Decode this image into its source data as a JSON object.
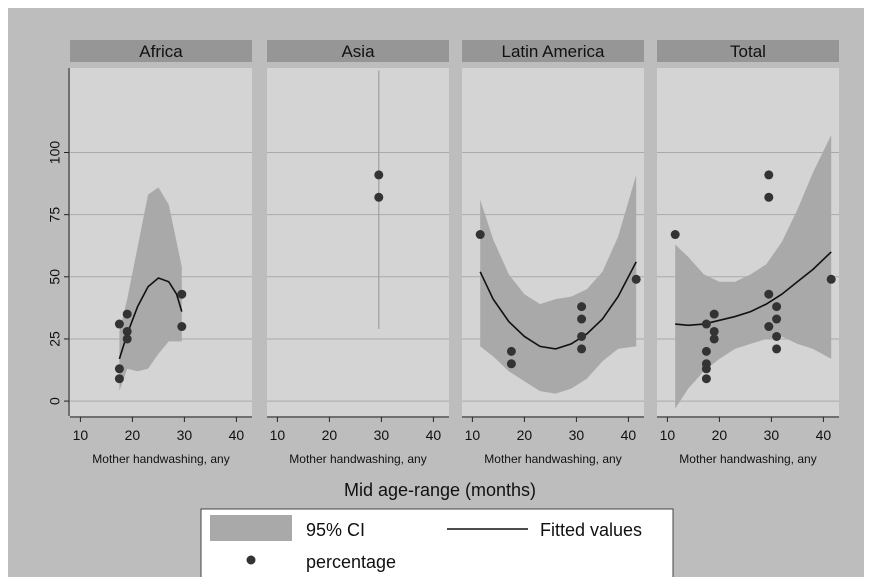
{
  "chart_data": {
    "type": "scatter",
    "xlabel": "Mid age-range (months)",
    "ylabel": "",
    "xlim": [
      8,
      43
    ],
    "ylim": [
      -6,
      134
    ],
    "xticks": [
      10,
      20,
      30,
      40
    ],
    "yticks": [
      0,
      25,
      50,
      75,
      100
    ],
    "grid": true,
    "legend_position": "bottom",
    "legend": {
      "ci_label": "95% CI",
      "fit_label": "Fitted values",
      "points_label": "percentage"
    },
    "panels": [
      {
        "title": "Africa",
        "subtitle": "Mother handwashing, any",
        "points": [
          [
            17.5,
            31
          ],
          [
            17.5,
            13
          ],
          [
            17.5,
            9
          ],
          [
            19,
            35
          ],
          [
            19,
            28
          ],
          [
            19,
            25
          ],
          [
            29.5,
            43
          ],
          [
            29.5,
            30
          ]
        ],
        "fit": [
          [
            17.5,
            17
          ],
          [
            19,
            27
          ],
          [
            21,
            38
          ],
          [
            23,
            46
          ],
          [
            25,
            49.5
          ],
          [
            27,
            48
          ],
          [
            28.5,
            43
          ],
          [
            29.5,
            36
          ]
        ],
        "ci_upper": [
          [
            17.5,
            28
          ],
          [
            19,
            41
          ],
          [
            21,
            62
          ],
          [
            23,
            83
          ],
          [
            25,
            86
          ],
          [
            27,
            79
          ],
          [
            29.5,
            54
          ]
        ],
        "ci_lower": [
          [
            17.5,
            4
          ],
          [
            19,
            13
          ],
          [
            21,
            12
          ],
          [
            23,
            13
          ],
          [
            25,
            19
          ],
          [
            27,
            24
          ],
          [
            29.5,
            24
          ]
        ]
      },
      {
        "title": "Asia",
        "subtitle": "Mother handwashing, any",
        "points": [
          [
            29.5,
            91
          ],
          [
            29.5,
            82
          ]
        ],
        "fit": [],
        "ci_upper": [],
        "ci_lower": [],
        "vertical_ci": {
          "x": 29.5,
          "low": 29,
          "high": 144
        }
      },
      {
        "title": "Latin America",
        "subtitle": "Mother handwashing, any",
        "points": [
          [
            11.5,
            67
          ],
          [
            17.5,
            20
          ],
          [
            17.5,
            15
          ],
          [
            31,
            38
          ],
          [
            31,
            33
          ],
          [
            31,
            26
          ],
          [
            31,
            21
          ],
          [
            41.5,
            49
          ]
        ],
        "fit": [
          [
            11.5,
            52
          ],
          [
            14,
            41
          ],
          [
            17,
            32
          ],
          [
            20,
            26
          ],
          [
            23,
            22
          ],
          [
            26,
            21
          ],
          [
            29,
            23
          ],
          [
            32,
            27
          ],
          [
            35,
            33
          ],
          [
            38,
            42
          ],
          [
            41.5,
            56
          ]
        ],
        "ci_upper": [
          [
            11.5,
            81
          ],
          [
            14,
            65
          ],
          [
            17,
            51
          ],
          [
            20,
            43
          ],
          [
            23,
            39
          ],
          [
            26,
            41
          ],
          [
            29,
            42
          ],
          [
            32,
            45
          ],
          [
            35,
            52
          ],
          [
            38,
            66
          ],
          [
            41.5,
            91
          ]
        ],
        "ci_lower": [
          [
            11.5,
            22
          ],
          [
            14,
            18
          ],
          [
            17,
            12
          ],
          [
            20,
            8
          ],
          [
            23,
            4
          ],
          [
            26,
            3
          ],
          [
            29,
            5
          ],
          [
            32,
            9
          ],
          [
            35,
            16
          ],
          [
            38,
            21
          ],
          [
            41.5,
            22
          ]
        ]
      },
      {
        "title": "Total",
        "subtitle": "Mother handwashing, any",
        "points": [
          [
            11.5,
            67
          ],
          [
            17.5,
            31
          ],
          [
            17.5,
            20
          ],
          [
            17.5,
            15
          ],
          [
            17.5,
            13
          ],
          [
            17.5,
            9
          ],
          [
            19,
            35
          ],
          [
            19,
            28
          ],
          [
            19,
            25
          ],
          [
            29.5,
            91
          ],
          [
            29.5,
            82
          ],
          [
            29.5,
            43
          ],
          [
            29.5,
            30
          ],
          [
            31,
            38
          ],
          [
            31,
            33
          ],
          [
            31,
            26
          ],
          [
            31,
            21
          ],
          [
            41.5,
            49
          ]
        ],
        "fit": [
          [
            11.5,
            31
          ],
          [
            14,
            30.5
          ],
          [
            17,
            31
          ],
          [
            20,
            32.5
          ],
          [
            23,
            34
          ],
          [
            26,
            36
          ],
          [
            29,
            39
          ],
          [
            32,
            43
          ],
          [
            35,
            48
          ],
          [
            38,
            53
          ],
          [
            41.5,
            60
          ]
        ],
        "ci_upper": [
          [
            11.5,
            63
          ],
          [
            14,
            58
          ],
          [
            17,
            51
          ],
          [
            20,
            48
          ],
          [
            23,
            48
          ],
          [
            26,
            51
          ],
          [
            29,
            55
          ],
          [
            32,
            64
          ],
          [
            35,
            77
          ],
          [
            38,
            92
          ],
          [
            41.5,
            107
          ]
        ],
        "ci_lower": [
          [
            11.5,
            -3
          ],
          [
            14,
            5
          ],
          [
            17,
            12
          ],
          [
            20,
            17
          ],
          [
            23,
            21
          ],
          [
            26,
            23
          ],
          [
            29,
            25
          ],
          [
            32,
            26
          ],
          [
            35,
            23
          ],
          [
            38,
            21
          ],
          [
            41.5,
            17
          ]
        ]
      }
    ]
  }
}
